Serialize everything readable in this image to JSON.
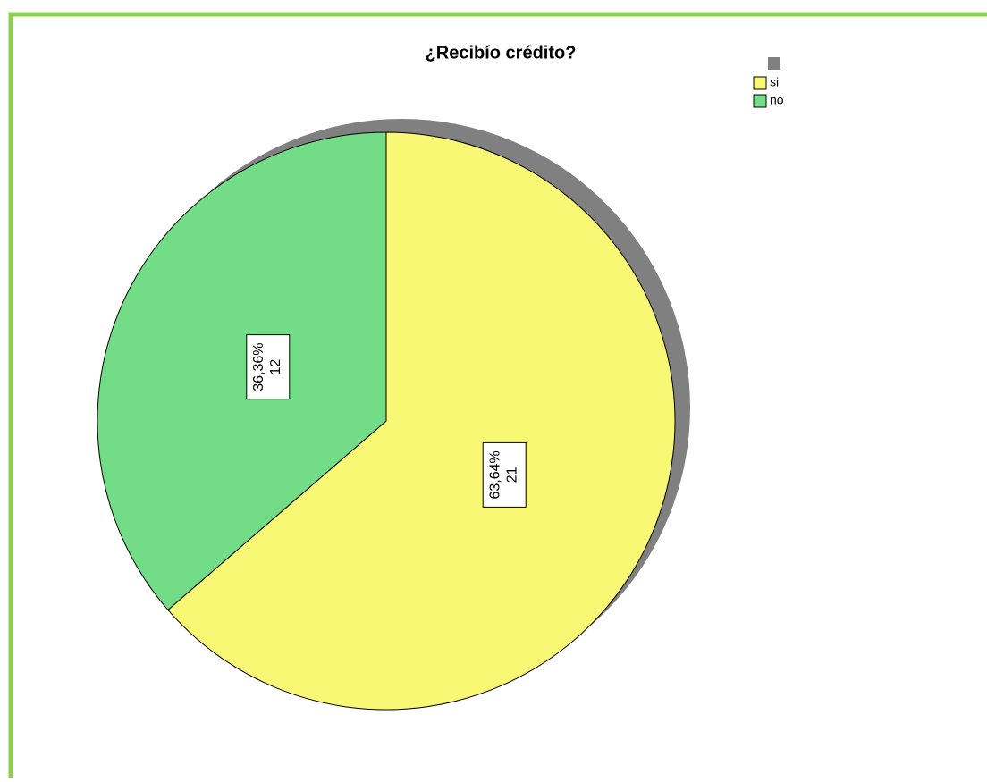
{
  "chart_data": {
    "type": "pie",
    "title": "¿Recibío crédito?",
    "categories": [
      "si",
      "no"
    ],
    "values": [
      63.64,
      36.36
    ],
    "value_labels": [
      "63,64%",
      "36,36%"
    ],
    "counts": [
      21,
      12
    ],
    "colors": [
      "#f9f874",
      "#72dd86"
    ],
    "legend": "top-right"
  }
}
